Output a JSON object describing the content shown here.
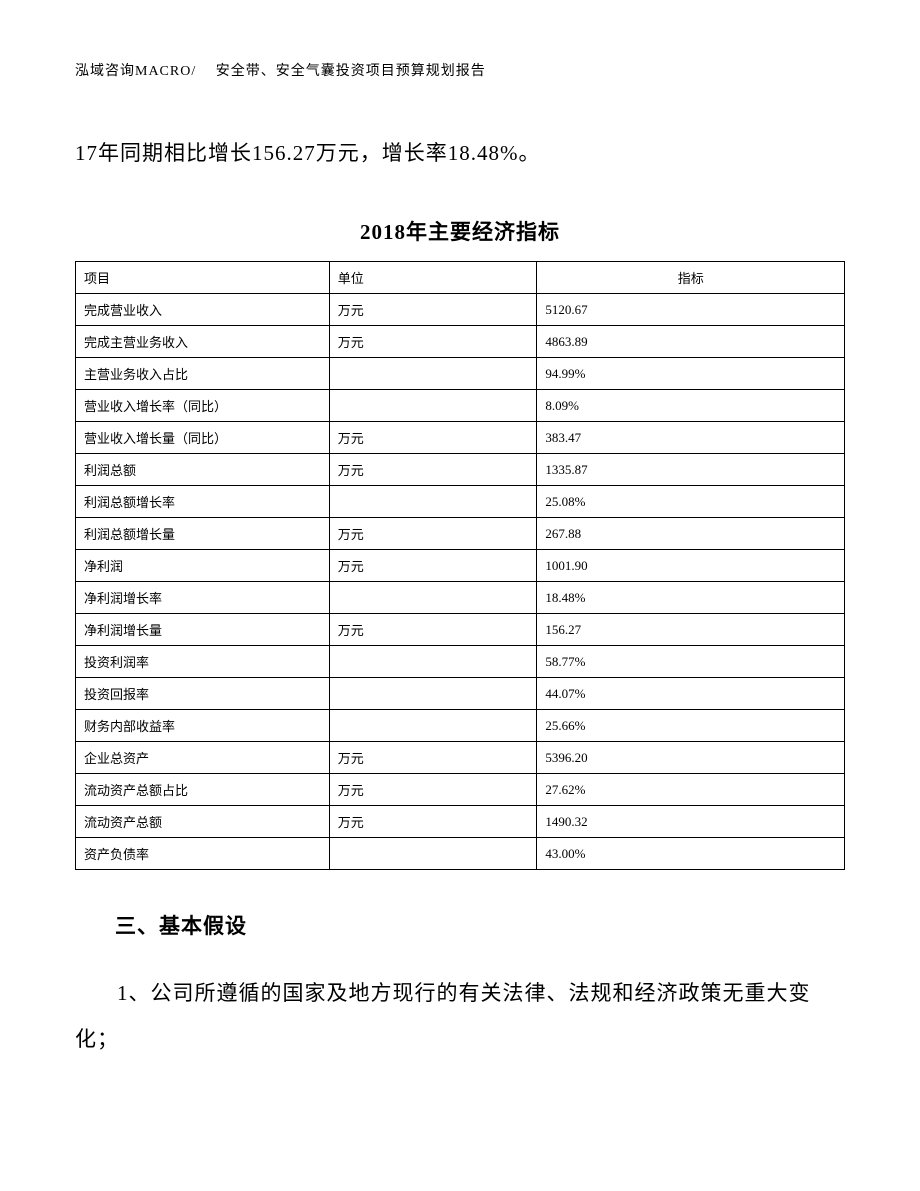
{
  "header": {
    "text": "泓域咨询MACRO/　 安全带、安全气囊投资项目预算规划报告"
  },
  "body_text": "17年同期相比增长156.27万元，增长率18.48%。",
  "table": {
    "title": "2018年主要经济指标",
    "columns": [
      "项目",
      "单位",
      "指标"
    ],
    "rows": [
      [
        "完成营业收入",
        "万元",
        "5120.67"
      ],
      [
        "完成主营业务收入",
        "万元",
        "4863.89"
      ],
      [
        "主营业务收入占比",
        "",
        "94.99%"
      ],
      [
        "营业收入增长率（同比）",
        "",
        "8.09%"
      ],
      [
        "营业收入增长量（同比）",
        "万元",
        "383.47"
      ],
      [
        "利润总额",
        "万元",
        "1335.87"
      ],
      [
        "利润总额增长率",
        "",
        "25.08%"
      ],
      [
        "利润总额增长量",
        "万元",
        "267.88"
      ],
      [
        "净利润",
        "万元",
        "1001.90"
      ],
      [
        "净利润增长率",
        "",
        "18.48%"
      ],
      [
        "净利润增长量",
        "万元",
        "156.27"
      ],
      [
        "投资利润率",
        "",
        "58.77%"
      ],
      [
        "投资回报率",
        "",
        "44.07%"
      ],
      [
        "财务内部收益率",
        "",
        "25.66%"
      ],
      [
        "企业总资产",
        "万元",
        "5396.20"
      ],
      [
        "流动资产总额占比",
        "万元",
        "27.62%"
      ],
      [
        "流动资产总额",
        "万元",
        "1490.32"
      ],
      [
        "资产负债率",
        "",
        "43.00%"
      ]
    ]
  },
  "section": {
    "title": "三、基本假设",
    "text": "1、公司所遵循的国家及地方现行的有关法律、法规和经济政策无重大变化；"
  }
}
